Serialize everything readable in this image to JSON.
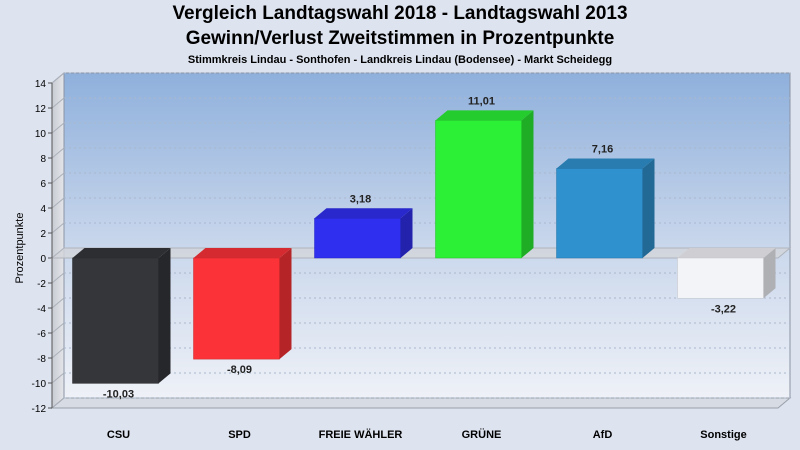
{
  "title": "Vergleich Landtagswahl 2018 - Landtagswahl 2013",
  "subtitle": "Gewinn/Verlust Zweitstimmen in Prozentpunkte",
  "subsubtitle": "Stimmkreis Lindau - Sonthofen - Landkreis Lindau (Bodensee) - Markt Scheidegg",
  "chart_data": {
    "type": "bar",
    "title": "Vergleich Landtagswahl 2018 - Landtagswahl 2013",
    "ylabel": "Prozentpunkte",
    "xlabel": "",
    "ylim": [
      -12,
      14
    ],
    "yticks": [
      14,
      12,
      10,
      8,
      6,
      4,
      2,
      0,
      -2,
      -4,
      -6,
      -8,
      -10,
      -12
    ],
    "categories": [
      "CSU",
      "SPD",
      "FREIE WÄHLER",
      "GRÜNE",
      "AfD",
      "Sonstige"
    ],
    "values": [
      -10.03,
      -8.09,
      3.18,
      11.01,
      7.16,
      -3.22
    ],
    "value_labels": [
      "-10,03",
      "-8,09",
      "3,18",
      "11,01",
      "7,16",
      "-3,22"
    ],
    "colors": [
      "#35363a",
      "#fb3338",
      "#2f2ff0",
      "#2cf035",
      "#2f92cf",
      "#f3f4f8"
    ],
    "grid": true,
    "legend": "none"
  }
}
